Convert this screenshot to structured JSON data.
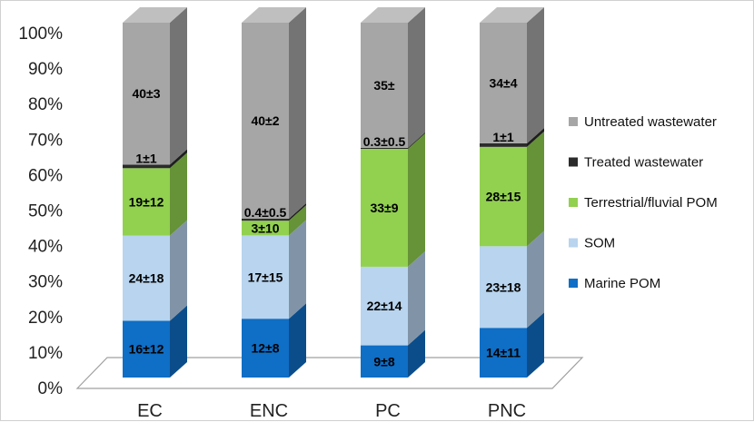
{
  "chart_data": {
    "type": "bar",
    "stacked": true,
    "normalized_percent": true,
    "three_d": true,
    "categories": [
      "EC",
      "ENC",
      "PC",
      "PNC"
    ],
    "yticks": [
      "0%",
      "10%",
      "20%",
      "30%",
      "40%",
      "50%",
      "60%",
      "70%",
      "80%",
      "90%",
      "100%"
    ],
    "ylim": [
      0,
      100
    ],
    "legend_position": "right",
    "series": [
      {
        "name": "Marine POM",
        "color": "#0f6ec5",
        "values": [
          16,
          12,
          9,
          14
        ],
        "labels": [
          "16±12",
          "12±8",
          "9±8",
          "14±11"
        ]
      },
      {
        "name": "SOM",
        "color": "#b8d4ee",
        "values": [
          24,
          17,
          22,
          23
        ],
        "labels": [
          "24±18",
          "17±15",
          "22±14",
          "23±18"
        ]
      },
      {
        "name": "Terrestrial/fluvial POM",
        "color": "#92d050",
        "values": [
          19,
          3,
          33,
          28
        ],
        "labels": [
          "19±12",
          "3±10",
          "33±9",
          "28±15"
        ]
      },
      {
        "name": "Treated wastewater",
        "color": "#2b2b2b",
        "values": [
          1,
          0.4,
          0.3,
          1
        ],
        "labels": [
          "1±1",
          "0.4±0.5",
          "0.3±0.5",
          "1±1"
        ]
      },
      {
        "name": "Untreated wastewater",
        "color": "#a6a6a6",
        "values": [
          40,
          40,
          35,
          34
        ],
        "labels": [
          "40±3",
          "40±2",
          "35±",
          "34±4"
        ]
      }
    ]
  }
}
